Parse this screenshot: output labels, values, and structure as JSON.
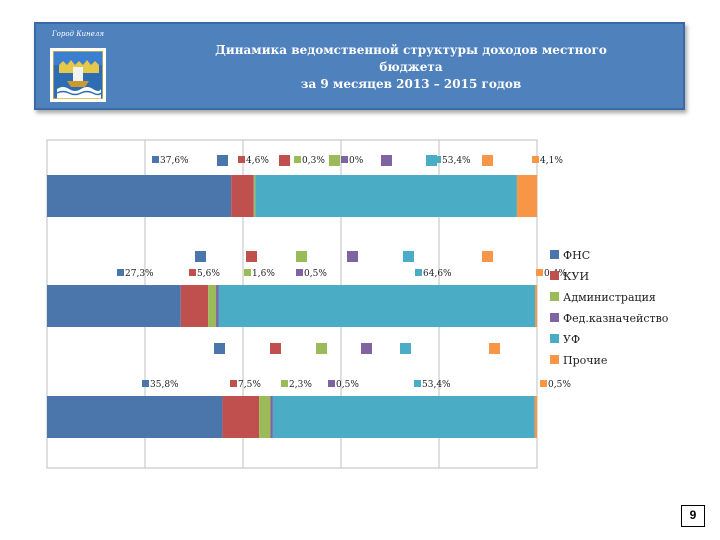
{
  "header": {
    "city": "Город Кинеля",
    "title_line1": "Динамика ведомственной структуры доходов местного бюджета",
    "title_line2": "за 9 месяцев 2013 – 2015 годов",
    "emblem_icon": "city-coat-of-arms-ship-icon"
  },
  "page_number": "9",
  "chart_data": {
    "type": "bar",
    "orientation": "horizontal-stacked-100",
    "categories": [
      "",
      "",
      ""
    ],
    "series": [
      {
        "name": "ФНС",
        "color": "#4a76ac",
        "values": [
          37.6,
          27.3,
          35.8
        ],
        "labels": [
          "37,6%",
          "27,3%",
          "35,8%"
        ]
      },
      {
        "name": "КУИ",
        "color": "#c0504d",
        "values": [
          4.6,
          5.6,
          7.5
        ],
        "labels": [
          "4,6%",
          "5,6%",
          "7,5%"
        ]
      },
      {
        "name": "Администрация",
        "color": "#9bbb59",
        "values": [
          0.3,
          1.6,
          2.3
        ],
        "labels": [
          "0,3%",
          "1,6%",
          "2,3%"
        ]
      },
      {
        "name": "Фед.казначейство",
        "color": "#8064a2",
        "values": [
          0,
          0.5,
          0.5
        ],
        "labels": [
          "0%",
          "0,5%",
          "0,5%"
        ]
      },
      {
        "name": "УФ",
        "color": "#4bacc6",
        "values": [
          53.4,
          64.6,
          53.4
        ],
        "labels": [
          "53,4%",
          "64,6%",
          "53,4%"
        ]
      },
      {
        "name": "Прочие",
        "color": "#f79646",
        "values": [
          4.1,
          0.4,
          0.5
        ],
        "labels": [
          "4,1%",
          "0,4%",
          "0,5%"
        ]
      }
    ],
    "xlim": [
      0,
      100
    ],
    "grid": true,
    "legend": "right"
  }
}
